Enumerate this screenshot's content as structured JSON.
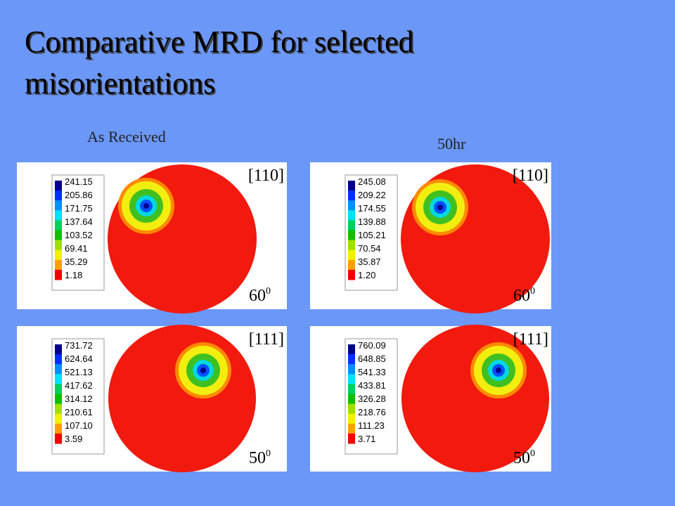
{
  "title": [
    "Comparative MRD for selected",
    "misorientations"
  ],
  "columns": [
    "As Received",
    "50hr"
  ],
  "panels": [
    {
      "legend": [
        "241.15",
        "205.86",
        "171.75",
        "137.64",
        "103.52",
        "69.41",
        "35.29",
        "1.18"
      ],
      "direction": "[110]",
      "angle": {
        "value": "60",
        "sup": "0"
      }
    },
    {
      "legend": [
        "245.08",
        "209.22",
        "174.55",
        "139.88",
        "105.21",
        "70.54",
        "35.87",
        "1.20"
      ],
      "direction": "[110]",
      "angle": {
        "value": "60",
        "sup": "0"
      }
    },
    {
      "legend": [
        "731.72",
        "624.64",
        "521.13",
        "417.62",
        "314.12",
        "210.61",
        "107.10",
        "3.59"
      ],
      "direction": "[111]",
      "angle": {
        "value": "50",
        "sup": "0"
      }
    },
    {
      "legend": [
        "760.09",
        "648.85",
        "541.33",
        "433.81",
        "326.28",
        "218.76",
        "111.23",
        "3.71"
      ],
      "direction": "[111]",
      "angle": {
        "value": "50",
        "sup": "0"
      }
    }
  ]
}
